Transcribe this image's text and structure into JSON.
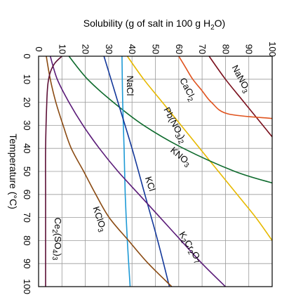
{
  "chart_data": {
    "type": "line",
    "title": "Solubility (g of salt in 100 g H₂O)",
    "title_parts": {
      "before": "Solubility (g of salt in 100 g H",
      "sub": "2",
      "after": "O)"
    },
    "xlabel": "Temperature (°C)",
    "x_axis": "vertical-left",
    "y_axis": "horizontal-top",
    "xlim": [
      0,
      100
    ],
    "ylim": [
      0,
      100
    ],
    "grid": true,
    "x_ticks": [
      "0",
      "10",
      "20",
      "30",
      "40",
      "50",
      "60",
      "70",
      "80",
      "90",
      "100"
    ],
    "y_ticks": [
      "0",
      "10",
      "20",
      "30",
      "40",
      "50",
      "60",
      "70",
      "80",
      "90",
      "100"
    ],
    "series": [
      {
        "name": "NaNO₃",
        "label_parts": [
          [
            "NaNO",
            0
          ],
          [
            "3",
            1
          ]
        ],
        "color": "#7a0f1c",
        "points": [
          [
            0,
            73
          ],
          [
            10,
            80
          ],
          [
            20,
            88
          ],
          [
            30,
            96
          ],
          [
            35,
            100
          ]
        ]
      },
      {
        "name": "CaCl₂",
        "label_parts": [
          [
            "CaCl",
            0
          ],
          [
            "2",
            1
          ]
        ],
        "color": "#e0531e",
        "points": [
          [
            0,
            60
          ],
          [
            5,
            63
          ],
          [
            10,
            66
          ],
          [
            15,
            70
          ],
          [
            20,
            74
          ],
          [
            25,
            81
          ],
          [
            27,
            100
          ]
        ]
      },
      {
        "name": "Pb(NO₃)₂",
        "label_parts": [
          [
            "Pb(NO",
            0
          ],
          [
            "3",
            1
          ],
          [
            ")",
            0
          ],
          [
            "2",
            1
          ]
        ],
        "color": "#e7b900",
        "points": [
          [
            0,
            38
          ],
          [
            10,
            45
          ],
          [
            20,
            53
          ],
          [
            30,
            61
          ],
          [
            40,
            69
          ],
          [
            50,
            77
          ],
          [
            60,
            85
          ],
          [
            70,
            93
          ],
          [
            80,
            100
          ]
        ]
      },
      {
        "name": "KNO₃",
        "label_parts": [
          [
            "KNO",
            0
          ],
          [
            "3",
            1
          ]
        ],
        "color": "#0d6a2c",
        "points": [
          [
            0,
            13
          ],
          [
            10,
            21
          ],
          [
            20,
            32
          ],
          [
            30,
            45
          ],
          [
            40,
            62
          ],
          [
            50,
            84
          ],
          [
            55,
            100
          ]
        ]
      },
      {
        "name": "NaCl",
        "label_parts": [
          [
            "NaCl",
            0
          ]
        ],
        "color": "#1e9ad6",
        "points": [
          [
            0,
            35.7
          ],
          [
            20,
            36
          ],
          [
            40,
            36.6
          ],
          [
            60,
            37.1
          ],
          [
            80,
            38
          ],
          [
            100,
            39.2
          ]
        ]
      },
      {
        "name": "KCl",
        "label_parts": [
          [
            "KCl",
            0
          ]
        ],
        "color": "#12379a",
        "points": [
          [
            0,
            28
          ],
          [
            20,
            34
          ],
          [
            40,
            40
          ],
          [
            60,
            45.5
          ],
          [
            80,
            51
          ],
          [
            100,
            56
          ]
        ]
      },
      {
        "name": "K₂Cr₂O₇",
        "label_parts": [
          [
            "K",
            0
          ],
          [
            "2",
            1
          ],
          [
            "Cr",
            0
          ],
          [
            "2",
            1
          ],
          [
            "O",
            0
          ],
          [
            "7",
            1
          ]
        ],
        "color": "#5a1a78",
        "points": [
          [
            0,
            5
          ],
          [
            10,
            8
          ],
          [
            20,
            13
          ],
          [
            30,
            19
          ],
          [
            40,
            26
          ],
          [
            50,
            34
          ],
          [
            60,
            43
          ],
          [
            70,
            52
          ],
          [
            80,
            61
          ],
          [
            90,
            70
          ],
          [
            100,
            80
          ]
        ]
      },
      {
        "name": "KClO₃",
        "label_parts": [
          [
            "KClO",
            0
          ],
          [
            "3",
            1
          ]
        ],
        "color": "#8a4a12",
        "points": [
          [
            0,
            3.3
          ],
          [
            10,
            5
          ],
          [
            20,
            7.4
          ],
          [
            30,
            10.5
          ],
          [
            40,
            14
          ],
          [
            50,
            19.3
          ],
          [
            60,
            24.5
          ],
          [
            70,
            30.2
          ],
          [
            80,
            38.5
          ],
          [
            90,
            47
          ],
          [
            100,
            57
          ]
        ]
      },
      {
        "name": "Ce₂(SO₄)₃",
        "label_parts": [
          [
            "Ce",
            0
          ],
          [
            "2",
            1
          ],
          [
            "(SO",
            0
          ],
          [
            "4",
            1
          ],
          [
            ")",
            0
          ],
          [
            "3",
            1
          ]
        ],
        "color": "#5c0f36",
        "points": [
          [
            0,
            10
          ],
          [
            3,
            7
          ],
          [
            7,
            5
          ],
          [
            12,
            4
          ],
          [
            20,
            3.5
          ],
          [
            40,
            3
          ],
          [
            60,
            3
          ],
          [
            80,
            3
          ],
          [
            100,
            3
          ]
        ]
      }
    ]
  }
}
